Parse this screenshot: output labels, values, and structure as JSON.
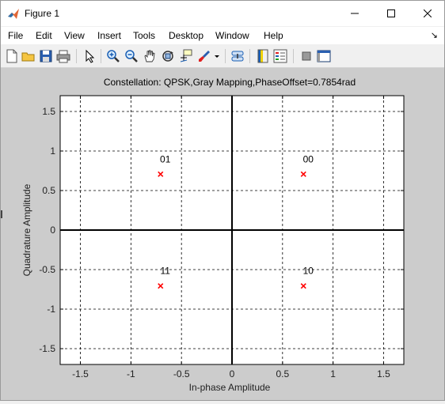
{
  "window": {
    "title": "Figure 1"
  },
  "menu": {
    "items": [
      "File",
      "Edit",
      "View",
      "Insert",
      "Tools",
      "Desktop",
      "Window",
      "Help"
    ],
    "dock_arrow": "↘"
  },
  "toolbar": {
    "icons": [
      "new-figure-icon",
      "open-file-icon",
      "save-icon",
      "print-icon",
      "edit-plot-icon",
      "zoom-in-icon",
      "zoom-out-icon",
      "pan-icon",
      "rotate-3d-icon",
      "data-cursor-icon",
      "brush-icon",
      "link-plot-icon",
      "colorbar-icon",
      "legend-icon",
      "hide-plot-tools-icon",
      "show-plot-tools-icon"
    ]
  },
  "chart_data": {
    "type": "scatter",
    "title": "Constellation: QPSK,Gray Mapping,PhaseOffset=0.7854rad",
    "xlabel": "In-phase Amplitude",
    "ylabel": "Quadrature Amplitude",
    "xlim": [
      -1.7,
      1.7
    ],
    "ylim": [
      -1.7,
      1.7
    ],
    "xticks": [
      -1.5,
      -1,
      -0.5,
      0,
      0.5,
      1,
      1.5
    ],
    "xtick_labels": [
      "-1.5",
      "-1",
      "-0.5",
      "0",
      "0.5",
      "1",
      "1.5"
    ],
    "yticks": [
      -1.5,
      -1,
      -0.5,
      0,
      0.5,
      1,
      1.5
    ],
    "ytick_labels": [
      "-1.5",
      "-1",
      "-0.5",
      "0",
      "0.5",
      "1",
      "1.5"
    ],
    "grid": true,
    "marker": "x",
    "marker_color": "#ff0000",
    "points": [
      {
        "x": -0.7071,
        "y": 0.7071,
        "label": "01"
      },
      {
        "x": 0.7071,
        "y": 0.7071,
        "label": "00"
      },
      {
        "x": -0.7071,
        "y": -0.7071,
        "label": "11"
      },
      {
        "x": 0.7071,
        "y": -0.7071,
        "label": "10"
      }
    ]
  }
}
